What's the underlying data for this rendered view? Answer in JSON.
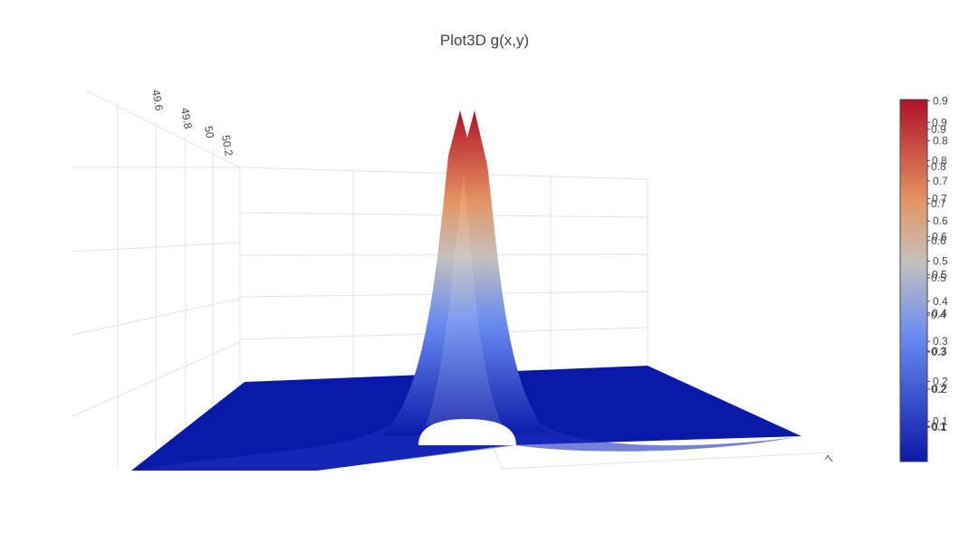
{
  "chart_data": {
    "type": "surface",
    "title": "Plot3D  g(x,y)",
    "colorscale": [
      [
        0,
        "#0a1aa8"
      ],
      [
        0.35,
        "#6a8cf0"
      ],
      [
        0.55,
        "#c4c0bc"
      ],
      [
        0.72,
        "#e59463"
      ],
      [
        1,
        "#b01227"
      ]
    ],
    "clim": [
      0,
      0.903
    ],
    "cticks": [
      0.1,
      0.2,
      0.3,
      0.4,
      0.5,
      0.6,
      0.7,
      0.8,
      0.9
    ],
    "clim_overlay": [
      0.005,
      0.98
    ],
    "cticks_overlay": [
      0.1,
      0.2,
      0.3,
      0.4,
      0.5,
      0.6,
      0.7,
      0.8,
      0.9
    ],
    "clim_overlay2": [
      0.01,
      0.96
    ],
    "cticks_overlay2": [
      0.1,
      0.2,
      0.3,
      0.4,
      0.5,
      0.6,
      0.7,
      0.8,
      0.9
    ],
    "yaxis_ticks": [
      49.6,
      49.8,
      50,
      50.2
    ],
    "xaxis_ticks": [
      7
    ]
  }
}
